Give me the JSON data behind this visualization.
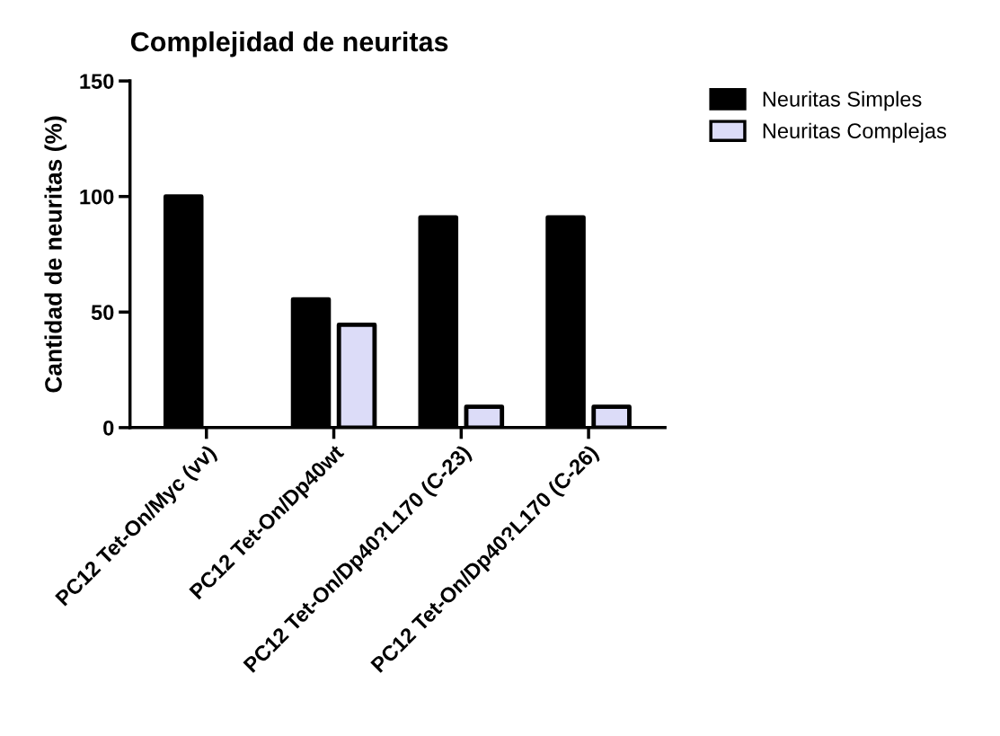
{
  "chart_data": {
    "type": "bar",
    "title": "Complejidad de neuritas",
    "ylabel": "Cantidad de neuritas (%)",
    "categories": [
      "PC12 Tet-On/Myc (vv)",
      "PC12 Tet-On/Dp40wt",
      "PC12 Tet-On/Dp40?L170 (C-23)",
      "PC12 Tet-On/Dp40?L170 (C-26)"
    ],
    "series": [
      {
        "name": "Neuritas Simples",
        "color": "#000000",
        "values": [
          100,
          55.5,
          91,
          91
        ]
      },
      {
        "name": "Neuritas Complejas",
        "color": "#dcdcf8",
        "values": [
          null,
          44.5,
          9,
          9
        ]
      }
    ],
    "ylim": [
      0,
      150
    ],
    "yticks": [
      0,
      50,
      100,
      150
    ],
    "grid": false,
    "legend": "top right"
  }
}
